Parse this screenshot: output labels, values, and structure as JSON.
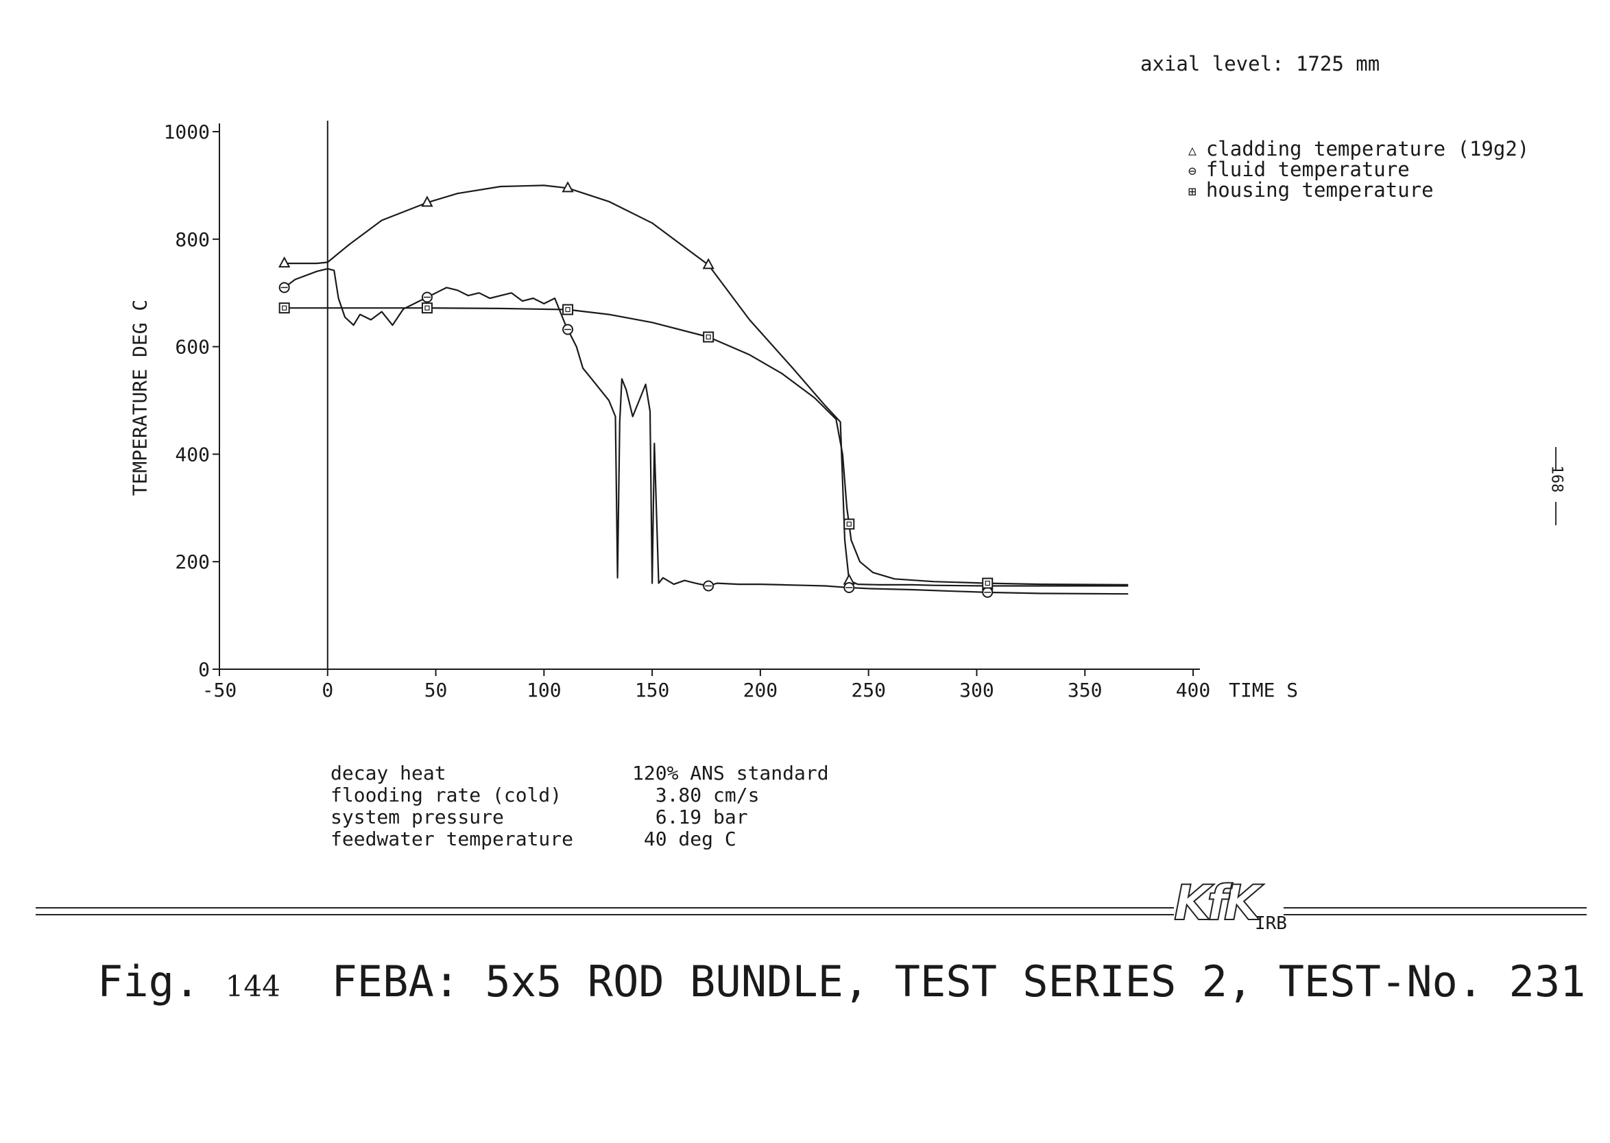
{
  "header": {
    "axial_level": "axial level: 1725 mm"
  },
  "legend": {
    "items": [
      {
        "symbol": "△",
        "label": "cladding temperature (19g2)"
      },
      {
        "symbol": "⊖",
        "label": "fluid temperature"
      },
      {
        "symbol": "⊞",
        "label": "housing temperature"
      }
    ]
  },
  "parameters": [
    {
      "label": "decay heat",
      "value": "120% ANS standard"
    },
    {
      "label": "flooding rate (cold)",
      "value": "  3.80 cm/s"
    },
    {
      "label": "system pressure",
      "value": "  6.19 bar"
    },
    {
      "label": "feedwater temperature",
      "value": " 40 deg C"
    }
  ],
  "logo": {
    "text": "KfK",
    "sub": "IRB"
  },
  "caption": {
    "fig": "Fig.",
    "fig_no": "144",
    "title": "FEBA: 5x5 ROD BUNDLE, TEST SERIES 2, TEST-No. 231"
  },
  "page_number": "168",
  "chart_data": {
    "type": "line",
    "title": "",
    "xlabel": "TIME S",
    "ylabel": "TEMPERATURE DEG C",
    "xlim": [
      -50,
      400
    ],
    "ylim": [
      0,
      1000
    ],
    "xticks": [
      -50,
      0,
      50,
      100,
      150,
      200,
      250,
      300,
      350,
      400
    ],
    "yticks": [
      0,
      200,
      400,
      600,
      800,
      1000
    ],
    "xtick_labels": [
      "-50",
      "0",
      "50",
      "100",
      "150",
      "200",
      "250",
      "300",
      "350",
      "400"
    ],
    "ytick_labels": [
      "0",
      "200",
      "400",
      "600",
      "800",
      "1000"
    ],
    "grid": false,
    "legend_position": "top-right",
    "vertical_reference_x": 0,
    "series": [
      {
        "name": "cladding temperature (19g2)",
        "marker": "triangle",
        "color": "#1a1a1a",
        "x": [
          -20,
          -5,
          0,
          10,
          25,
          46,
          60,
          80,
          100,
          111,
          130,
          150,
          176,
          195,
          215,
          230,
          237,
          239,
          241,
          245,
          255,
          270,
          280,
          305,
          330,
          370
        ],
        "y": [
          755,
          755,
          757,
          790,
          835,
          868,
          885,
          898,
          900,
          895,
          870,
          830,
          752,
          650,
          560,
          490,
          460,
          240,
          165,
          158,
          157,
          157,
          156,
          155,
          155,
          155
        ],
        "marker_x": [
          -20,
          46,
          111,
          176,
          241,
          305
        ]
      },
      {
        "name": "fluid temperature",
        "marker": "circle",
        "color": "#1a1a1a",
        "x": [
          -20,
          -15,
          -5,
          0,
          3,
          5,
          8,
          12,
          15,
          20,
          25,
          30,
          35,
          40,
          45,
          50,
          55,
          60,
          65,
          70,
          75,
          80,
          85,
          90,
          95,
          100,
          105,
          110,
          115,
          118,
          122,
          126,
          130,
          133,
          134,
          135,
          136,
          138,
          141,
          144,
          147,
          149,
          150,
          151,
          153,
          155,
          160,
          165,
          170,
          176,
          180,
          190,
          200,
          210,
          220,
          230,
          240,
          250,
          270,
          290,
          305,
          330,
          370
        ],
        "y": [
          710,
          725,
          740,
          745,
          742,
          690,
          655,
          640,
          660,
          650,
          665,
          640,
          670,
          680,
          690,
          700,
          710,
          705,
          695,
          700,
          690,
          695,
          700,
          685,
          690,
          680,
          690,
          640,
          600,
          560,
          540,
          520,
          500,
          470,
          170,
          460,
          540,
          520,
          470,
          500,
          530,
          480,
          160,
          420,
          160,
          170,
          158,
          165,
          160,
          155,
          160,
          158,
          158,
          157,
          156,
          155,
          152,
          150,
          148,
          145,
          143,
          141,
          140
        ],
        "marker_x": [
          -20,
          46,
          111,
          176,
          241,
          305
        ]
      },
      {
        "name": "housing temperature",
        "marker": "square",
        "color": "#1a1a1a",
        "x": [
          -20,
          0,
          20,
          46,
          80,
          111,
          130,
          150,
          176,
          195,
          210,
          225,
          235,
          238,
          240,
          242,
          246,
          252,
          262,
          280,
          305,
          330,
          370
        ],
        "y": [
          672,
          672,
          672,
          672,
          671,
          669,
          660,
          645,
          618,
          585,
          550,
          505,
          465,
          400,
          300,
          240,
          200,
          180,
          168,
          163,
          160,
          158,
          157
        ],
        "marker_x": [
          -20,
          46,
          111,
          176,
          241,
          305
        ]
      }
    ]
  }
}
